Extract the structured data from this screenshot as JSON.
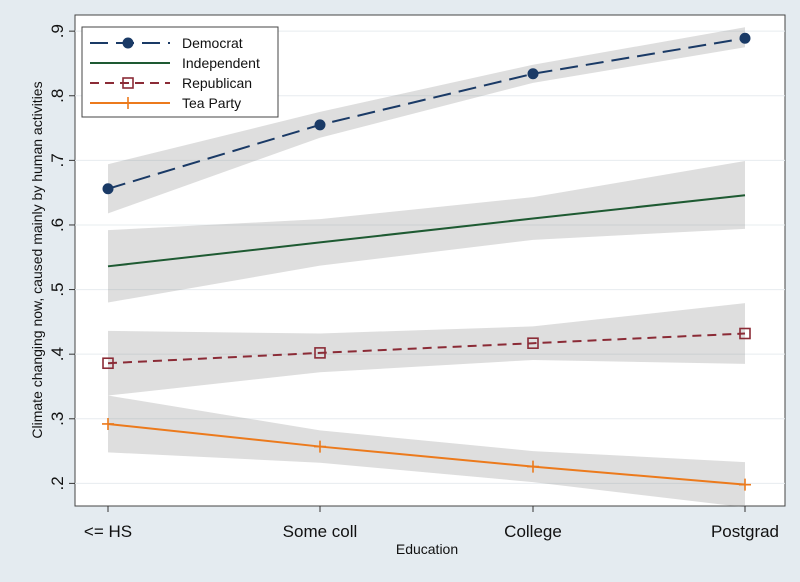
{
  "chart_data": {
    "type": "line",
    "xlabel": "Education",
    "ylabel": "Climate changing now, caused mainly by human activities",
    "categories": [
      "<= HS",
      "Some coll",
      "College",
      "Postgrad"
    ],
    "ylim": [
      0.165,
      0.925
    ],
    "yticks": [
      0.2,
      0.3,
      0.4,
      0.5,
      0.6,
      0.7,
      0.8,
      0.9
    ],
    "ytick_labels": [
      ".2",
      ".3",
      ".4",
      ".5",
      ".6",
      ".7",
      ".8",
      ".9"
    ],
    "grid": true,
    "legend_position": "top-left",
    "series": [
      {
        "name": "Democrat",
        "color": "#1a3a66",
        "dash": "dashed",
        "marker": "filled-circle",
        "values": [
          0.656,
          0.755,
          0.834,
          0.889
        ],
        "ci_low": [
          0.618,
          0.735,
          0.82,
          0.875
        ],
        "ci_high": [
          0.694,
          0.775,
          0.848,
          0.906
        ]
      },
      {
        "name": "Independent",
        "color": "#1e5a32",
        "dash": "solid",
        "marker": "none",
        "values": [
          0.536,
          0.573,
          0.61,
          0.646
        ],
        "ci_low": [
          0.48,
          0.537,
          0.577,
          0.594
        ],
        "ci_high": [
          0.592,
          0.609,
          0.643,
          0.699
        ]
      },
      {
        "name": "Republican",
        "color": "#8b2b36",
        "dash": "short-dashed",
        "marker": "hollow-square",
        "values": [
          0.386,
          0.402,
          0.417,
          0.432
        ],
        "ci_low": [
          0.336,
          0.372,
          0.391,
          0.385
        ],
        "ci_high": [
          0.436,
          0.432,
          0.443,
          0.479
        ]
      },
      {
        "name": "Tea Party",
        "color": "#ec7a1c",
        "dash": "solid",
        "marker": "plus",
        "values": [
          0.292,
          0.257,
          0.226,
          0.198
        ],
        "ci_low": [
          0.248,
          0.232,
          0.202,
          0.163
        ],
        "ci_high": [
          0.336,
          0.282,
          0.25,
          0.233
        ]
      }
    ]
  }
}
